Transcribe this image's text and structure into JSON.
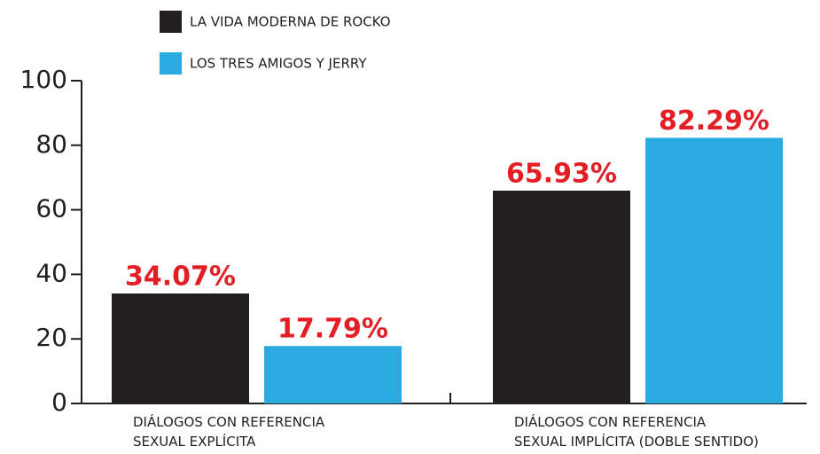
{
  "chart_data": {
    "type": "bar",
    "categories": [
      "DIÁLOGOS CON REFERENCIA\nSEXUAL EXPLÍCITA",
      "DIÁLOGOS CON REFERENCIA\nSEXUAL IMPLÍCITA (DOBLE SENTIDO)"
    ],
    "series": [
      {
        "name": "LA VIDA MODERNA DE ROCKO",
        "color": "#231f20",
        "values": [
          34.07,
          65.93
        ],
        "value_labels": [
          "34.07%",
          "65.93%"
        ]
      },
      {
        "name": "LOS TRES AMIGOS Y JERRY",
        "color": "#29abe2",
        "values": [
          17.79,
          82.29
        ],
        "value_labels": [
          "17.79%",
          "82.29%"
        ]
      }
    ],
    "ylim": [
      0,
      100
    ],
    "yticks": [
      0,
      20,
      40,
      60,
      80,
      100
    ],
    "value_label_color": "#e31e24"
  }
}
